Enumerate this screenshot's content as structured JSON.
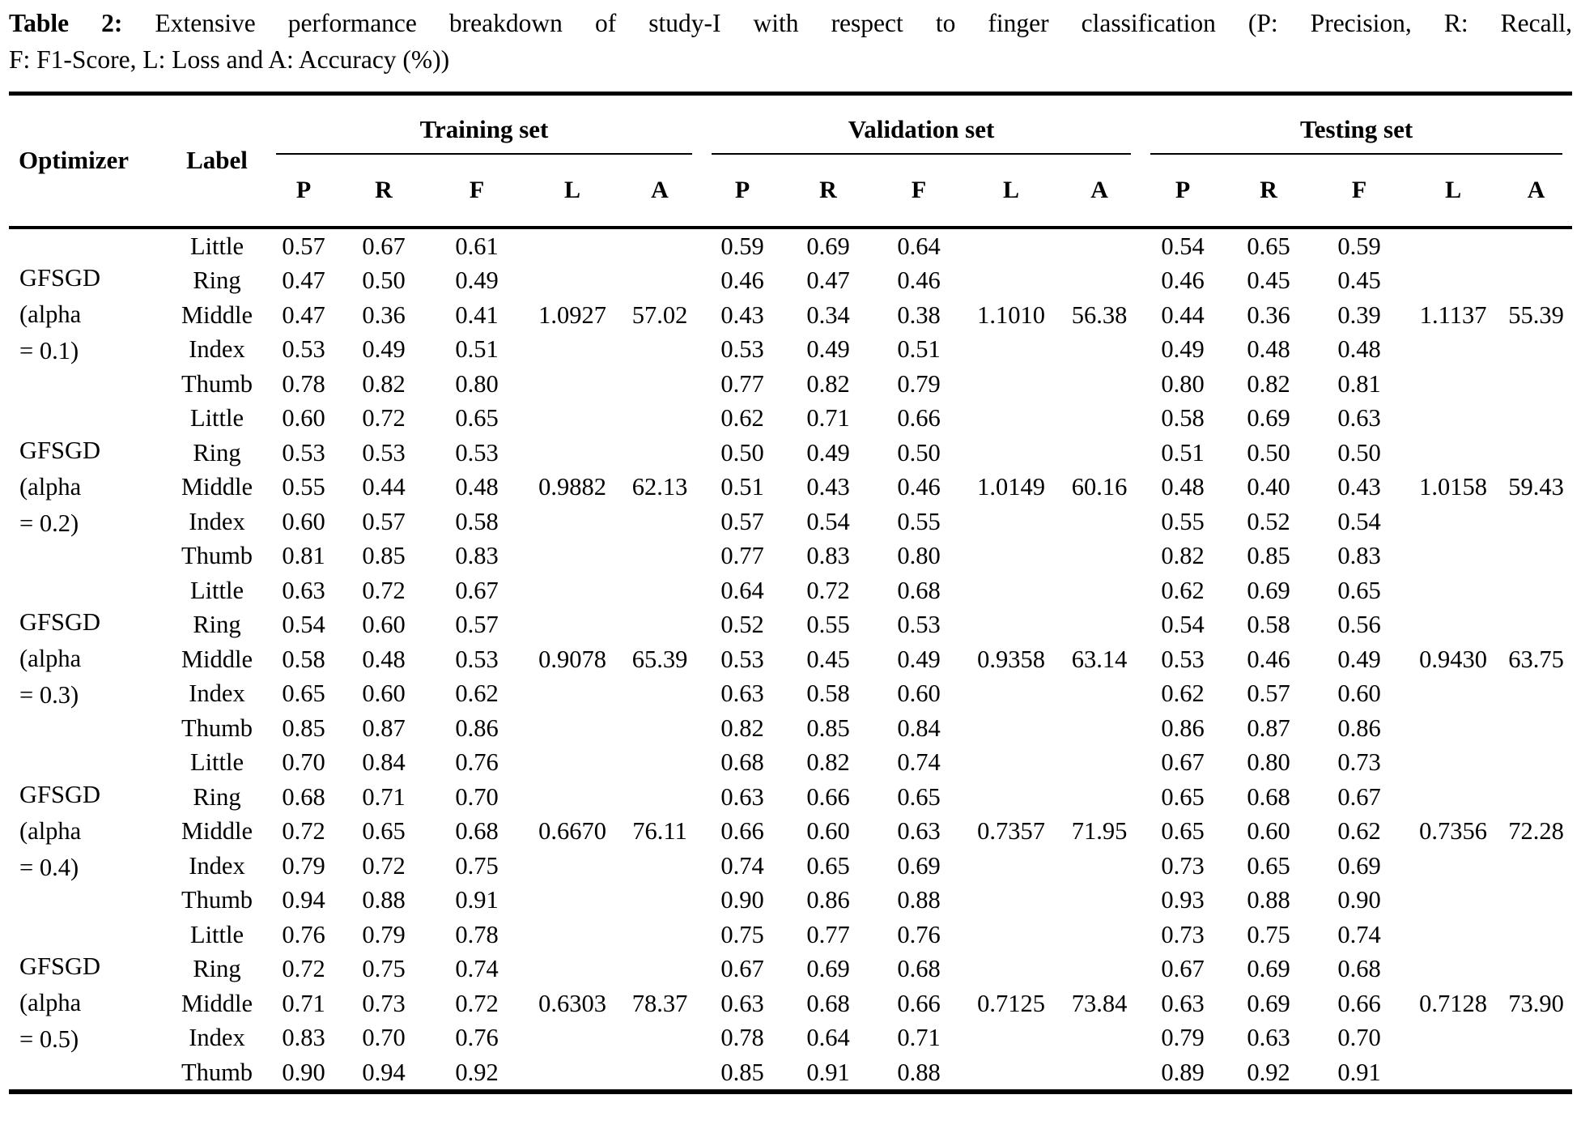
{
  "caption": {
    "label": "Table 2:",
    "line1_text": " Extensive performance breakdown of study-I with respect to finger classification (P: Precision, R: Recall,",
    "line2_text": "F: F1-Score, L: Loss and A: Accuracy (%))"
  },
  "table": {
    "headers": {
      "optimizer": "Optimizer",
      "label": "Label"
    },
    "groups": [
      "Training set",
      "Validation set",
      "Testing set"
    ],
    "metrics": [
      "P",
      "R",
      "F",
      "L",
      "A"
    ],
    "blocks": [
      {
        "optimizer_lines": [
          "GFSGD",
          "(alpha",
          "= 0.1)"
        ],
        "rows": [
          {
            "label": "Little",
            "t": [
              "0.57",
              "0.67",
              "0.61"
            ],
            "v": [
              "0.59",
              "0.69",
              "0.64"
            ],
            "te": [
              "0.54",
              "0.65",
              "0.59"
            ]
          },
          {
            "label": "Ring",
            "t": [
              "0.47",
              "0.50",
              "0.49"
            ],
            "v": [
              "0.46",
              "0.47",
              "0.46"
            ],
            "te": [
              "0.46",
              "0.45",
              "0.45"
            ]
          },
          {
            "label": "Middle",
            "t": [
              "0.47",
              "0.36",
              "0.41",
              "1.0927",
              "57.02"
            ],
            "v": [
              "0.43",
              "0.34",
              "0.38",
              "1.1010",
              "56.38"
            ],
            "te": [
              "0.44",
              "0.36",
              "0.39",
              "1.1137",
              "55.39"
            ]
          },
          {
            "label": "Index",
            "t": [
              "0.53",
              "0.49",
              "0.51"
            ],
            "v": [
              "0.53",
              "0.49",
              "0.51"
            ],
            "te": [
              "0.49",
              "0.48",
              "0.48"
            ]
          },
          {
            "label": "Thumb",
            "t": [
              "0.78",
              "0.82",
              "0.80"
            ],
            "v": [
              "0.77",
              "0.82",
              "0.79"
            ],
            "te": [
              "0.80",
              "0.82",
              "0.81"
            ]
          }
        ]
      },
      {
        "optimizer_lines": [
          "GFSGD",
          "(alpha",
          "= 0.2)"
        ],
        "rows": [
          {
            "label": "Little",
            "t": [
              "0.60",
              "0.72",
              "0.65"
            ],
            "v": [
              "0.62",
              "0.71",
              "0.66"
            ],
            "te": [
              "0.58",
              "0.69",
              "0.63"
            ]
          },
          {
            "label": "Ring",
            "t": [
              "0.53",
              "0.53",
              "0.53"
            ],
            "v": [
              "0.50",
              "0.49",
              "0.50"
            ],
            "te": [
              "0.51",
              "0.50",
              "0.50"
            ]
          },
          {
            "label": "Middle",
            "t": [
              "0.55",
              "0.44",
              "0.48",
              "0.9882",
              "62.13"
            ],
            "v": [
              "0.51",
              "0.43",
              "0.46",
              "1.0149",
              "60.16"
            ],
            "te": [
              "0.48",
              "0.40",
              "0.43",
              "1.0158",
              "59.43"
            ]
          },
          {
            "label": "Index",
            "t": [
              "0.60",
              "0.57",
              "0.58"
            ],
            "v": [
              "0.57",
              "0.54",
              "0.55"
            ],
            "te": [
              "0.55",
              "0.52",
              "0.54"
            ]
          },
          {
            "label": "Thumb",
            "t": [
              "0.81",
              "0.85",
              "0.83"
            ],
            "v": [
              "0.77",
              "0.83",
              "0.80"
            ],
            "te": [
              "0.82",
              "0.85",
              "0.83"
            ]
          }
        ]
      },
      {
        "optimizer_lines": [
          "GFSGD",
          "(alpha",
          "= 0.3)"
        ],
        "rows": [
          {
            "label": "Little",
            "t": [
              "0.63",
              "0.72",
              "0.67"
            ],
            "v": [
              "0.64",
              "0.72",
              "0.68"
            ],
            "te": [
              "0.62",
              "0.69",
              "0.65"
            ]
          },
          {
            "label": "Ring",
            "t": [
              "0.54",
              "0.60",
              "0.57"
            ],
            "v": [
              "0.52",
              "0.55",
              "0.53"
            ],
            "te": [
              "0.54",
              "0.58",
              "0.56"
            ]
          },
          {
            "label": "Middle",
            "t": [
              "0.58",
              "0.48",
              "0.53",
              "0.9078",
              "65.39"
            ],
            "v": [
              "0.53",
              "0.45",
              "0.49",
              "0.9358",
              "63.14"
            ],
            "te": [
              "0.53",
              "0.46",
              "0.49",
              "0.9430",
              "63.75"
            ]
          },
          {
            "label": "Index",
            "t": [
              "0.65",
              "0.60",
              "0.62"
            ],
            "v": [
              "0.63",
              "0.58",
              "0.60"
            ],
            "te": [
              "0.62",
              "0.57",
              "0.60"
            ]
          },
          {
            "label": "Thumb",
            "t": [
              "0.85",
              "0.87",
              "0.86"
            ],
            "v": [
              "0.82",
              "0.85",
              "0.84"
            ],
            "te": [
              "0.86",
              "0.87",
              "0.86"
            ]
          }
        ]
      },
      {
        "optimizer_lines": [
          "GFSGD",
          "(alpha",
          "= 0.4)"
        ],
        "rows": [
          {
            "label": "Little",
            "t": [
              "0.70",
              "0.84",
              "0.76"
            ],
            "v": [
              "0.68",
              "0.82",
              "0.74"
            ],
            "te": [
              "0.67",
              "0.80",
              "0.73"
            ]
          },
          {
            "label": "Ring",
            "t": [
              "0.68",
              "0.71",
              "0.70"
            ],
            "v": [
              "0.63",
              "0.66",
              "0.65"
            ],
            "te": [
              "0.65",
              "0.68",
              "0.67"
            ]
          },
          {
            "label": "Middle",
            "t": [
              "0.72",
              "0.65",
              "0.68",
              "0.6670",
              "76.11"
            ],
            "v": [
              "0.66",
              "0.60",
              "0.63",
              "0.7357",
              "71.95"
            ],
            "te": [
              "0.65",
              "0.60",
              "0.62",
              "0.7356",
              "72.28"
            ]
          },
          {
            "label": "Index",
            "t": [
              "0.79",
              "0.72",
              "0.75"
            ],
            "v": [
              "0.74",
              "0.65",
              "0.69"
            ],
            "te": [
              "0.73",
              "0.65",
              "0.69"
            ]
          },
          {
            "label": "Thumb",
            "t": [
              "0.94",
              "0.88",
              "0.91"
            ],
            "v": [
              "0.90",
              "0.86",
              "0.88"
            ],
            "te": [
              "0.93",
              "0.88",
              "0.90"
            ]
          }
        ]
      },
      {
        "optimizer_lines": [
          "GFSGD",
          "(alpha",
          "= 0.5)"
        ],
        "rows": [
          {
            "label": "Little",
            "t": [
              "0.76",
              "0.79",
              "0.78"
            ],
            "v": [
              "0.75",
              "0.77",
              "0.76"
            ],
            "te": [
              "0.73",
              "0.75",
              "0.74"
            ]
          },
          {
            "label": "Ring",
            "t": [
              "0.72",
              "0.75",
              "0.74"
            ],
            "v": [
              "0.67",
              "0.69",
              "0.68"
            ],
            "te": [
              "0.67",
              "0.69",
              "0.68"
            ]
          },
          {
            "label": "Middle",
            "t": [
              "0.71",
              "0.73",
              "0.72",
              "0.6303",
              "78.37"
            ],
            "v": [
              "0.63",
              "0.68",
              "0.66",
              "0.7125",
              "73.84"
            ],
            "te": [
              "0.63",
              "0.69",
              "0.66",
              "0.7128",
              "73.90"
            ]
          },
          {
            "label": "Index",
            "t": [
              "0.83",
              "0.70",
              "0.76"
            ],
            "v": [
              "0.78",
              "0.64",
              "0.71"
            ],
            "te": [
              "0.79",
              "0.63",
              "0.70"
            ]
          },
          {
            "label": "Thumb",
            "t": [
              "0.90",
              "0.94",
              "0.92"
            ],
            "v": [
              "0.85",
              "0.91",
              "0.88"
            ],
            "te": [
              "0.89",
              "0.92",
              "0.91"
            ]
          }
        ]
      }
    ]
  }
}
